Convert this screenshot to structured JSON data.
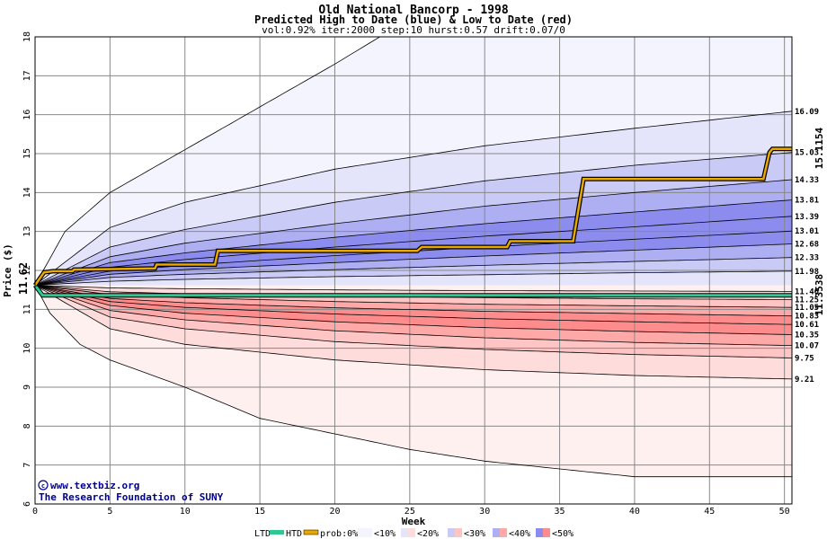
{
  "title": "Old National Bancorp - 1998",
  "subtitle": "Predicted High to Date (blue) &  Low to Date (red)",
  "params": "vol:0.92% iter:2000 step:10 hurst:0.57 drift:0.07/0",
  "credit_line1": "www.textbiz.org",
  "credit_line2": "The Research Foundation of SUNY",
  "colors": {
    "blue_bands": [
      "#f4f4ff",
      "#e4e4fb",
      "#cacaf7",
      "#aeaef3",
      "#8c8cef"
    ],
    "red_bands": [
      "#fff0f0",
      "#ffdcdc",
      "#ffc4c4",
      "#ffa8a8",
      "#ff8c8c"
    ],
    "actual_path": "#e8a800",
    "htd_line": "#2ec890",
    "start_label": "#006000",
    "end_high_label": "#b06a00",
    "end_low_label": "#00a070"
  },
  "legend": {
    "ltd": "LTD",
    "htd": "HTD",
    "prob": "prob:0%",
    "b10": "<10%",
    "b20": "<20%",
    "b30": "<30%",
    "b40": "<40%",
    "b50": "<50%"
  },
  "chart_data": {
    "type": "area",
    "title": "Old National Bancorp - 1998",
    "xlabel": "Week",
    "ylabel": "Price ($)",
    "xlim": [
      0,
      50.5
    ],
    "ylim": [
      6,
      18
    ],
    "x_ticks": [
      "0",
      "5",
      "10",
      "15",
      "20",
      "25",
      "30",
      "35",
      "40",
      "45",
      "50"
    ],
    "y_ticks": [
      "6",
      "7",
      "8",
      "9",
      "10",
      "11",
      "12",
      "13",
      "14",
      "15",
      "16",
      "17",
      "18"
    ],
    "start_price": "11.62",
    "start_value": 11.62,
    "high_end_label": "15.1154",
    "low_end_label": "11.3538",
    "high_envelope_outer": [
      [
        0,
        11.62
      ],
      [
        2,
        13.0
      ],
      [
        5,
        14.0
      ],
      [
        10,
        15.1
      ],
      [
        15,
        16.2
      ],
      [
        20,
        17.3
      ],
      [
        23,
        18.0
      ]
    ],
    "low_envelope_outer": [
      [
        0,
        11.62
      ],
      [
        1,
        10.9
      ],
      [
        3,
        10.1
      ],
      [
        5,
        9.7
      ],
      [
        10,
        9.0
      ],
      [
        15,
        8.2
      ],
      [
        20,
        7.8
      ],
      [
        25,
        7.4
      ],
      [
        30,
        7.1
      ],
      [
        35,
        6.9
      ],
      [
        40,
        6.7
      ],
      [
        50.5,
        6.7
      ]
    ],
    "high_bands": [
      {
        "name": "0%",
        "end_label": "16.09",
        "end_value": 16.09,
        "points": [
          [
            0,
            11.62
          ],
          [
            5,
            13.1
          ],
          [
            10,
            13.75
          ],
          [
            20,
            14.6
          ],
          [
            30,
            15.2
          ],
          [
            40,
            15.65
          ],
          [
            50.5,
            16.09
          ]
        ]
      },
      {
        "name": "<10%",
        "end_label": "15.03",
        "end_value": 15.03,
        "points": [
          [
            0,
            11.62
          ],
          [
            5,
            12.6
          ],
          [
            10,
            13.05
          ],
          [
            20,
            13.75
          ],
          [
            30,
            14.3
          ],
          [
            40,
            14.7
          ],
          [
            50.5,
            15.03
          ]
        ]
      },
      {
        "name": "<20%",
        "end_label": "14.33",
        "end_value": 14.33,
        "points": [
          [
            0,
            11.62
          ],
          [
            5,
            12.35
          ],
          [
            10,
            12.7
          ],
          [
            20,
            13.2
          ],
          [
            30,
            13.65
          ],
          [
            40,
            14.0
          ],
          [
            50.5,
            14.33
          ]
        ]
      },
      {
        "name": "<30%",
        "end_label": "13.81",
        "end_value": 13.81,
        "points": [
          [
            0,
            11.62
          ],
          [
            5,
            12.2
          ],
          [
            10,
            12.45
          ],
          [
            20,
            12.85
          ],
          [
            30,
            13.2
          ],
          [
            40,
            13.5
          ],
          [
            50.5,
            13.81
          ]
        ]
      },
      {
        "name": "<40%",
        "end_label": "13.39",
        "end_value": 13.39,
        "points": [
          [
            0,
            11.62
          ],
          [
            5,
            12.08
          ],
          [
            10,
            12.28
          ],
          [
            20,
            12.6
          ],
          [
            30,
            12.88
          ],
          [
            40,
            13.12
          ],
          [
            50.5,
            13.39
          ]
        ]
      },
      {
        "name": "<50%",
        "end_label": "13.01",
        "end_value": 13.01,
        "points": [
          [
            0,
            11.62
          ],
          [
            5,
            11.98
          ],
          [
            10,
            12.13
          ],
          [
            20,
            12.38
          ],
          [
            30,
            12.6
          ],
          [
            40,
            12.8
          ],
          [
            50.5,
            13.01
          ]
        ]
      },
      {
        "name": "",
        "end_label": "12.68",
        "end_value": 12.68,
        "points": [
          [
            0,
            11.62
          ],
          [
            5,
            11.9
          ],
          [
            10,
            12.02
          ],
          [
            20,
            12.2
          ],
          [
            30,
            12.37
          ],
          [
            40,
            12.52
          ],
          [
            50.5,
            12.68
          ]
        ]
      },
      {
        "name": "",
        "end_label": "12.33",
        "end_value": 12.33,
        "points": [
          [
            0,
            11.62
          ],
          [
            5,
            11.82
          ],
          [
            10,
            11.9
          ],
          [
            20,
            12.02
          ],
          [
            30,
            12.13
          ],
          [
            40,
            12.23
          ],
          [
            50.5,
            12.33
          ]
        ]
      },
      {
        "name": "",
        "end_label": "11.98",
        "end_value": 11.98,
        "points": [
          [
            0,
            11.62
          ],
          [
            5,
            11.72
          ],
          [
            10,
            11.77
          ],
          [
            20,
            11.84
          ],
          [
            30,
            11.89
          ],
          [
            40,
            11.94
          ],
          [
            50.5,
            11.98
          ]
        ]
      }
    ],
    "low_bands": [
      {
        "name": "",
        "end_label": "11.46",
        "end_value": 11.46,
        "points": [
          [
            0,
            11.62
          ],
          [
            5,
            11.55
          ],
          [
            10,
            11.53
          ],
          [
            20,
            11.5
          ],
          [
            30,
            11.48
          ],
          [
            40,
            11.47
          ],
          [
            50.5,
            11.46
          ]
        ]
      },
      {
        "name": "",
        "end_label": "11.25",
        "end_value": 11.25,
        "points": [
          [
            0,
            11.62
          ],
          [
            5,
            11.45
          ],
          [
            10,
            11.4
          ],
          [
            20,
            11.34
          ],
          [
            30,
            11.3
          ],
          [
            40,
            11.27
          ],
          [
            50.5,
            11.25
          ]
        ]
      },
      {
        "name": "",
        "end_label": "11.05",
        "end_value": 11.05,
        "points": [
          [
            0,
            11.62
          ],
          [
            5,
            11.38
          ],
          [
            10,
            11.3
          ],
          [
            20,
            11.2
          ],
          [
            30,
            11.13
          ],
          [
            40,
            11.09
          ],
          [
            50.5,
            11.05
          ]
        ]
      },
      {
        "name": "",
        "end_label": "10.83",
        "end_value": 10.83,
        "points": [
          [
            0,
            11.62
          ],
          [
            5,
            11.28
          ],
          [
            10,
            11.17
          ],
          [
            20,
            11.04
          ],
          [
            30,
            10.95
          ],
          [
            40,
            10.89
          ],
          [
            50.5,
            10.83
          ]
        ]
      },
      {
        "name": "",
        "end_label": "10.61",
        "end_value": 10.61,
        "points": [
          [
            0,
            11.62
          ],
          [
            5,
            11.2
          ],
          [
            10,
            11.05
          ],
          [
            20,
            10.88
          ],
          [
            30,
            10.76
          ],
          [
            40,
            10.68
          ],
          [
            50.5,
            10.61
          ]
        ]
      },
      {
        "name": "",
        "end_label": "10.35",
        "end_value": 10.35,
        "points": [
          [
            0,
            11.62
          ],
          [
            5,
            11.1
          ],
          [
            10,
            10.9
          ],
          [
            20,
            10.68
          ],
          [
            30,
            10.53
          ],
          [
            40,
            10.43
          ],
          [
            50.5,
            10.35
          ]
        ]
      },
      {
        "name": "",
        "end_label": "10.07",
        "end_value": 10.07,
        "points": [
          [
            0,
            11.62
          ],
          [
            5,
            10.97
          ],
          [
            10,
            10.73
          ],
          [
            20,
            10.45
          ],
          [
            30,
            10.27
          ],
          [
            40,
            10.15
          ],
          [
            50.5,
            10.07
          ]
        ]
      },
      {
        "name": "",
        "end_label": "9.75",
        "end_value": 9.75,
        "points": [
          [
            0,
            11.62
          ],
          [
            5,
            10.8
          ],
          [
            10,
            10.5
          ],
          [
            20,
            10.17
          ],
          [
            30,
            9.97
          ],
          [
            40,
            9.84
          ],
          [
            50.5,
            9.75
          ]
        ]
      },
      {
        "name": "",
        "end_label": "9.21",
        "end_value": 9.21,
        "points": [
          [
            0,
            11.62
          ],
          [
            5,
            10.5
          ],
          [
            10,
            10.1
          ],
          [
            20,
            9.7
          ],
          [
            30,
            9.45
          ],
          [
            40,
            9.3
          ],
          [
            50.5,
            9.21
          ]
        ]
      }
    ],
    "actual_high_to_date": [
      [
        0,
        11.62
      ],
      [
        0.6,
        11.95
      ],
      [
        1.2,
        11.98
      ],
      [
        2.5,
        11.98
      ],
      [
        2.6,
        12.02
      ],
      [
        8,
        12.05
      ],
      [
        8.1,
        12.15
      ],
      [
        12,
        12.15
      ],
      [
        12.2,
        12.5
      ],
      [
        25.5,
        12.5
      ],
      [
        25.8,
        12.6
      ],
      [
        31.5,
        12.6
      ],
      [
        31.7,
        12.75
      ],
      [
        35.9,
        12.75
      ],
      [
        36.6,
        14.35
      ],
      [
        48.6,
        14.35
      ],
      [
        49,
        15.03
      ],
      [
        49.2,
        15.12
      ],
      [
        50.5,
        15.12
      ]
    ],
    "actual_low_to_date": [
      [
        0,
        11.62
      ],
      [
        0.5,
        11.36
      ],
      [
        50.5,
        11.36
      ]
    ]
  }
}
